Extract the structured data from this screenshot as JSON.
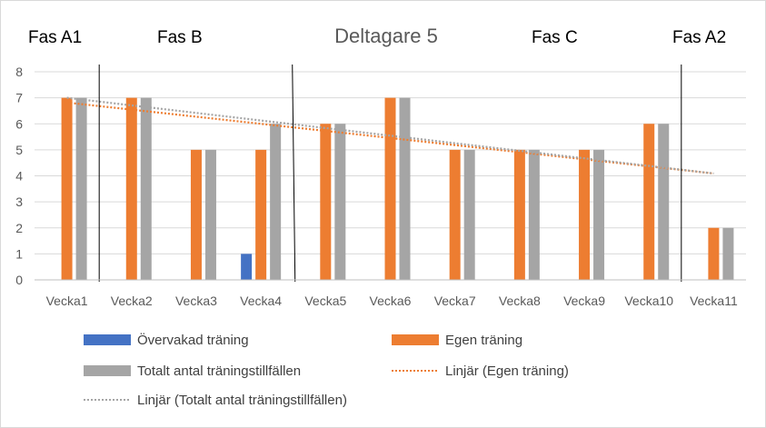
{
  "chart_data": {
    "type": "bar",
    "title": "Deltagare 5",
    "categories": [
      "Vecka1",
      "Vecka2",
      "Vecka3",
      "Vecka4",
      "Vecka5",
      "Vecka6",
      "Vecka7",
      "Vecka8",
      "Vecka9",
      "Vecka10",
      "Vecka11"
    ],
    "ylim": [
      0,
      8
    ],
    "yticks": [
      "0",
      "1",
      "2",
      "3",
      "4",
      "5",
      "6",
      "7",
      "8"
    ],
    "grid": true,
    "legend_position": "bottom",
    "series": [
      {
        "name": "Övervakad träning",
        "color": "#4472c4",
        "values": [
          0,
          0,
          0,
          1,
          0,
          0,
          0,
          0,
          0,
          0,
          0
        ]
      },
      {
        "name": "Egen träning",
        "color": "#ed7d31",
        "values": [
          7,
          7,
          5,
          5,
          6,
          7,
          5,
          5,
          5,
          6,
          2
        ]
      },
      {
        "name": "Totalt antal träningstillfällen",
        "color": "#a5a5a5",
        "values": [
          7,
          7,
          5,
          6,
          6,
          7,
          5,
          5,
          5,
          6,
          2
        ]
      }
    ],
    "trendlines": [
      {
        "name": "Linjär (Egen träning)",
        "color": "#ed7d31",
        "of_series": 1
      },
      {
        "name": "Linjär (Totalt antal träningstillfällen)",
        "color": "#a5a5a5",
        "of_series": 2
      }
    ],
    "phases": [
      "Fas A1",
      "Fas B",
      "Fas C",
      "Fas A2"
    ]
  }
}
